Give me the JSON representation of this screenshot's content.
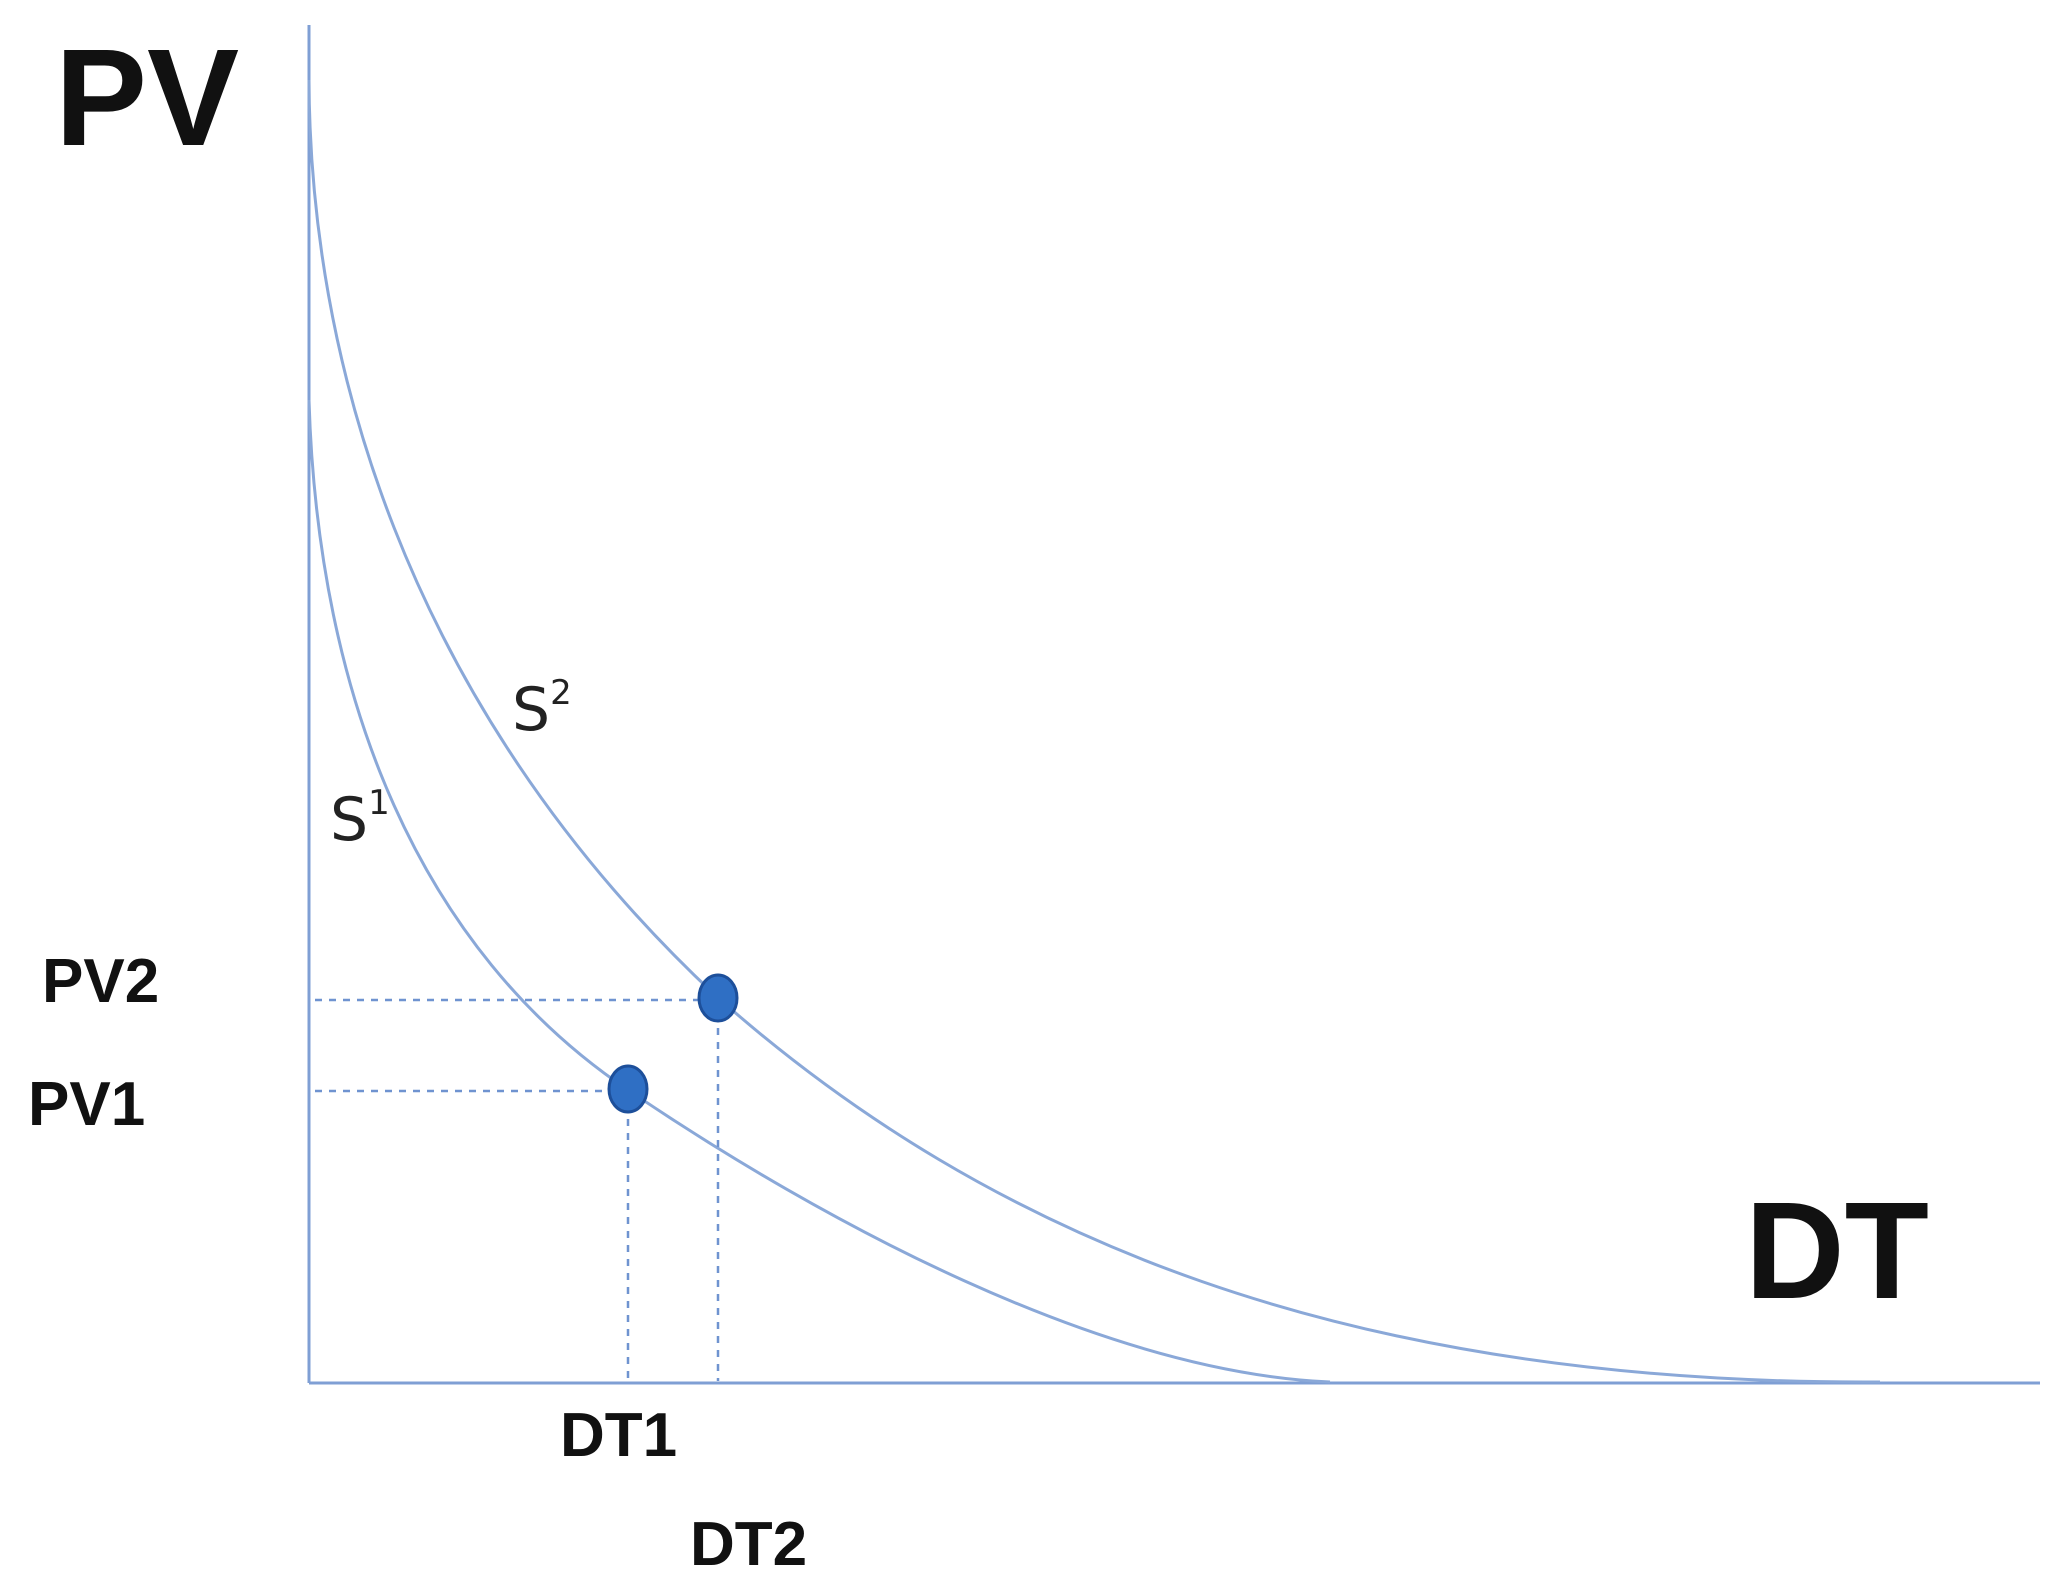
{
  "chart_data": {
    "type": "line",
    "title": "",
    "xlabel": "DT",
    "ylabel": "PV",
    "series": [
      {
        "name": "S",
        "superscript": "1"
      },
      {
        "name": "S",
        "superscript": "2"
      }
    ],
    "points": [
      {
        "x_label": "DT1",
        "y_label": "PV1",
        "series_index": 0
      },
      {
        "x_label": "DT2",
        "y_label": "PV2",
        "series_index": 1
      }
    ],
    "grid": false,
    "legend": "none"
  },
  "colors": {
    "curve": "#8aa8d8",
    "axis": "#7f9fd4",
    "guide": "#6f93d0",
    "point_fill": "#2f6fc4",
    "point_stroke": "#1d4f9a",
    "text": "#111111"
  }
}
